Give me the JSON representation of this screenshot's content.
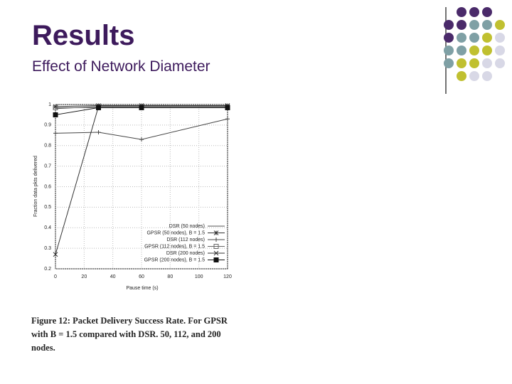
{
  "slide": {
    "title": "Results",
    "subtitle": "Effect of Network Diameter"
  },
  "caption": "Figure 12: Packet Delivery Success Rate. For GPSR with B = 1.5 compared with DSR. 50, 112, and 200 nodes.",
  "chart_data": {
    "type": "line",
    "x_label": "Pause time (s)",
    "y_label": "Fraction data pkts delivered",
    "x": [
      0,
      30,
      60,
      120
    ],
    "series": [
      {
        "name": "DSR (50 nodes)",
        "color": "#555555",
        "marker": "none",
        "values": [
          0.98,
          0.99,
          0.99,
          0.99
        ]
      },
      {
        "name": "GPSR (50 nodes), B = 1.5",
        "color": "#333333",
        "marker": "asterisk",
        "values": [
          0.99,
          0.995,
          0.995,
          0.995
        ]
      },
      {
        "name": "DSR (112 nodes)",
        "color": "#444444",
        "marker": "plus",
        "values": [
          0.86,
          0.865,
          0.83,
          0.93
        ]
      },
      {
        "name": "GPSR (112 nodes), B = 1.5",
        "color": "#666666",
        "marker": "square",
        "values": [
          0.985,
          0.985,
          0.985,
          0.985
        ]
      },
      {
        "name": "DSR (200 nodes)",
        "color": "#333333",
        "marker": "x",
        "values": [
          0.27,
          0.99,
          0.99,
          0.99
        ]
      },
      {
        "name": "GPSR (200 nodes), B = 1.5",
        "color": "#111111",
        "marker": "filled-square",
        "values": [
          0.95,
          0.985,
          0.985,
          0.985
        ]
      }
    ],
    "xlim": [
      0,
      120
    ],
    "xticks": [
      0,
      20,
      40,
      60,
      80,
      100,
      120
    ],
    "ylim": [
      0.2,
      1
    ],
    "yticks": [
      0.2,
      0.3,
      0.4,
      0.5,
      0.6,
      0.7,
      0.8,
      0.9,
      1
    ],
    "grid": true
  }
}
